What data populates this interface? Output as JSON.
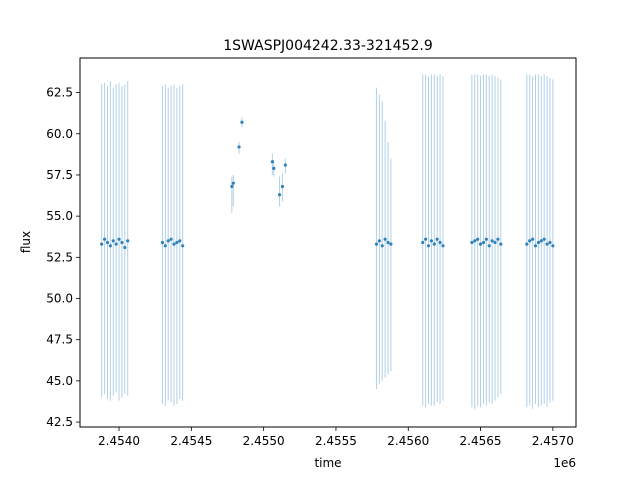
{
  "chart_data": {
    "type": "scatter",
    "title": "1SWASPJ004242.33-321452.9",
    "xlabel": "time",
    "ylabel": "flux",
    "x_offset_label": "1e6",
    "xlim": [
      2453730,
      2457160
    ],
    "ylim": [
      42.2,
      64.6
    ],
    "xticks": [
      2.454,
      2.4545,
      2.455,
      2.4555,
      2.456,
      2.4565,
      2.457
    ],
    "xtick_labels": [
      "2.4540",
      "2.4545",
      "2.4550",
      "2.4555",
      "2.4560",
      "2.4565",
      "2.4570"
    ],
    "yticks": [
      42.5,
      45.0,
      47.5,
      50.0,
      52.5,
      55.0,
      57.5,
      60.0,
      62.5
    ],
    "ytick_labels": [
      "42.5",
      "45.0",
      "47.5",
      "50.0",
      "52.5",
      "55.0",
      "57.5",
      "60.0",
      "62.5"
    ],
    "grid": false,
    "marker_color": "#1f77b4",
    "series": [
      {
        "x": [
          2453880,
          2453900,
          2453920,
          2453940,
          2453960,
          2453980,
          2454000,
          2454020,
          2454040,
          2454060
        ],
        "y": [
          53.3,
          53.6,
          53.4,
          53.2,
          53.5,
          53.3,
          53.6,
          53.4,
          53.1,
          53.5
        ],
        "y_min": [
          44.0,
          44.2,
          43.9,
          43.8,
          44.1,
          44.3,
          43.8,
          44.0,
          44.2,
          44.1
        ],
        "y_max": [
          63.0,
          63.1,
          62.9,
          63.2,
          62.8,
          63.0,
          63.1,
          62.9,
          63.0,
          63.2
        ]
      },
      {
        "x": [
          2454300,
          2454320,
          2454340,
          2454360,
          2454380,
          2454400,
          2454420,
          2454440
        ],
        "y": [
          53.4,
          53.2,
          53.5,
          53.6,
          53.3,
          53.4,
          53.5,
          53.2
        ],
        "y_min": [
          43.6,
          43.5,
          43.8,
          43.7,
          43.5,
          43.6,
          43.9,
          43.8
        ],
        "y_max": [
          62.9,
          63.0,
          62.8,
          62.9,
          63.0,
          62.8,
          62.9,
          63.0
        ]
      },
      {
        "x": [
          2454780,
          2454790,
          2454830,
          2454850,
          2455060,
          2455070,
          2455110,
          2455130,
          2455150
        ],
        "y": [
          56.8,
          57.0,
          59.2,
          60.7,
          58.3,
          57.9,
          56.3,
          56.8,
          58.1
        ],
        "y_min": [
          55.2,
          55.6,
          58.8,
          60.4,
          57.5,
          57.4,
          55.6,
          55.9,
          57.6
        ],
        "y_max": [
          57.4,
          57.5,
          59.5,
          61.0,
          58.8,
          58.4,
          57.4,
          57.6,
          58.5
        ]
      },
      {
        "x": [
          2455780,
          2455800,
          2455820,
          2455840,
          2455860,
          2455880
        ],
        "y": [
          53.3,
          53.5,
          53.2,
          53.6,
          53.4,
          53.3
        ],
        "y_min": [
          44.5,
          44.8,
          45.0,
          45.2,
          45.4,
          45.6
        ],
        "y_max": [
          62.8,
          62.4,
          62.0,
          60.8,
          59.5,
          58.5
        ]
      },
      {
        "x": [
          2456100,
          2456120,
          2456140,
          2456160,
          2456180,
          2456200,
          2456220,
          2456240
        ],
        "y": [
          53.4,
          53.6,
          53.2,
          53.5,
          53.3,
          53.6,
          53.4,
          53.2
        ],
        "y_min": [
          43.5,
          43.4,
          43.6,
          43.5,
          43.5,
          43.7,
          43.6,
          43.8
        ],
        "y_max": [
          63.6,
          63.6,
          63.5,
          63.6,
          63.6,
          63.5,
          63.6,
          63.5
        ]
      },
      {
        "x": [
          2456440,
          2456460,
          2456480,
          2456500,
          2456520,
          2456540,
          2456560,
          2456580,
          2456600,
          2456620,
          2456640
        ],
        "y": [
          53.4,
          53.5,
          53.6,
          53.3,
          53.4,
          53.6,
          53.2,
          53.5,
          53.4,
          53.6,
          53.3
        ],
        "y_min": [
          43.4,
          43.3,
          43.5,
          43.4,
          43.6,
          43.5,
          43.7,
          43.6,
          43.8,
          44.0,
          44.2
        ],
        "y_max": [
          63.6,
          63.6,
          63.6,
          63.5,
          63.6,
          63.6,
          63.5,
          63.6,
          63.5,
          63.4,
          63.3
        ]
      },
      {
        "x": [
          2456820,
          2456840,
          2456860,
          2456880,
          2456900,
          2456920,
          2456940,
          2456960,
          2456980,
          2457000
        ],
        "y": [
          53.3,
          53.5,
          53.6,
          53.2,
          53.4,
          53.5,
          53.6,
          53.3,
          53.4,
          53.2
        ],
        "y_min": [
          43.4,
          43.5,
          43.3,
          43.6,
          43.4,
          43.5,
          43.6,
          43.4,
          43.7,
          43.8
        ],
        "y_max": [
          63.6,
          63.6,
          63.5,
          63.6,
          63.6,
          63.5,
          63.6,
          63.5,
          63.4,
          63.3
        ]
      }
    ]
  }
}
